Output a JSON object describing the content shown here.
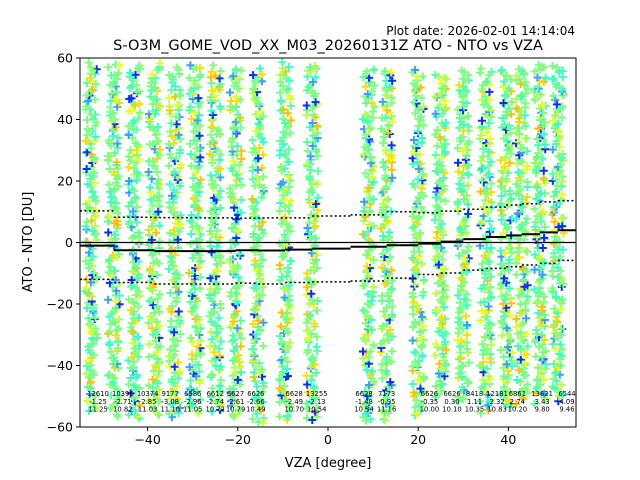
{
  "header": {
    "plot_date": "Plot date: 2026-02-01 14:14:04",
    "title": "S-O3M_GOME_VOD_XX_M03_20260131Z ATO - NTO vs VZA"
  },
  "chart_data": {
    "type": "scatter",
    "title": "S-O3M_GOME_VOD_XX_M03_20260131Z ATO - NTO vs VZA",
    "xlabel": "VZA [degree]",
    "ylabel": "ATO - NTO [DU]",
    "xlim": [
      -55,
      55
    ],
    "ylim": [
      -60,
      60
    ],
    "xticks": [
      -40,
      -20,
      0,
      20,
      40
    ],
    "yticks": [
      -60,
      -40,
      -20,
      0,
      20,
      40,
      60
    ],
    "xtick_labels": [
      "−40",
      "−20",
      "0",
      "20",
      "40"
    ],
    "ytick_labels": [
      "−60",
      "−40",
      "−20",
      "0",
      "20",
      "40",
      "60"
    ],
    "colors": {
      "scatter": [
        "#7fff7f",
        "#5cffa0",
        "#3cffc8",
        "#b8ff4a",
        "#e8ff24",
        "#ffdc00",
        "#ffc000",
        "#3c9cff",
        "#0030ff"
      ],
      "mean_line": "#000000",
      "zero_line": "#000000"
    },
    "scatter_columns": [
      {
        "x": -52.5,
        "ymin": -55,
        "ymax": 58
      },
      {
        "x": -47.5,
        "ymin": -56,
        "ymax": 58
      },
      {
        "x": -43.0,
        "ymin": -58,
        "ymax": 58
      },
      {
        "x": -38.5,
        "ymin": -56,
        "ymax": 58
      },
      {
        "x": -34.0,
        "ymin": -57,
        "ymax": 57
      },
      {
        "x": -29.5,
        "ymin": -56,
        "ymax": 58
      },
      {
        "x": -25.0,
        "ymin": -55,
        "ymax": 57
      },
      {
        "x": -20.5,
        "ymin": -57,
        "ymax": 57
      },
      {
        "x": -15.5,
        "ymin": -59,
        "ymax": 56
      },
      {
        "x": -9.5,
        "ymin": -58,
        "ymax": 58
      },
      {
        "x": -3.5,
        "ymin": -58,
        "ymax": 58
      },
      {
        "x": 9.0,
        "ymin": -58,
        "ymax": 57
      },
      {
        "x": 13.0,
        "ymin": -58,
        "ymax": 56
      },
      {
        "x": 20.0,
        "ymin": -56,
        "ymax": 56
      },
      {
        "x": 25.0,
        "ymin": -50,
        "ymax": 55
      },
      {
        "x": 30.0,
        "ymin": -52,
        "ymax": 56
      },
      {
        "x": 35.0,
        "ymin": -55,
        "ymax": 56
      },
      {
        "x": 39.5,
        "ymin": -54,
        "ymax": 56
      },
      {
        "x": 43.0,
        "ymin": -52,
        "ymax": 57
      },
      {
        "x": 47.0,
        "ymin": -52,
        "ymax": 58
      },
      {
        "x": 51.0,
        "ymin": -51,
        "ymax": 58
      }
    ],
    "mean_series": {
      "name": "mean",
      "x": [
        -55,
        -47.5,
        -38.5,
        -29.5,
        -20.5,
        -15.5,
        -9.5,
        -3.5,
        5,
        13,
        20,
        25,
        30,
        35,
        39.5,
        43,
        47,
        51,
        55
      ],
      "values": [
        -1.0,
        -2.5,
        -2.8,
        -2.8,
        -2.5,
        -2.6,
        -2.3,
        -2.0,
        -1.4,
        -0.9,
        -0.35,
        0.3,
        1.1,
        1.8,
        2.3,
        2.7,
        3.3,
        4.0,
        4.1
      ]
    },
    "upper_bound_series": {
      "name": "+1 sigma",
      "x": [
        -55,
        -47.5,
        -38.5,
        -29.5,
        -20.5,
        -15.5,
        -9.5,
        -3.5,
        5,
        13,
        20,
        25,
        30,
        35,
        39.5,
        43,
        47,
        51,
        55
      ],
      "values": [
        10.3,
        8.2,
        8.1,
        8.0,
        7.9,
        8.0,
        8.0,
        8.6,
        9.0,
        10.0,
        9.7,
        10.2,
        10.8,
        11.5,
        12.2,
        12.6,
        13.2,
        13.6,
        13.7
      ]
    },
    "lower_bound_series": {
      "name": "-1 sigma",
      "x": [
        -55,
        -47.5,
        -38.5,
        -29.5,
        -20.5,
        -15.5,
        -9.5,
        -3.5,
        5,
        13,
        20,
        25,
        30,
        35,
        39.5,
        43,
        47,
        51,
        55
      ],
      "values": [
        -12.0,
        -13.0,
        -13.5,
        -13.5,
        -13.2,
        -13.5,
        -13.0,
        -12.8,
        -12.5,
        -11.6,
        -10.4,
        -9.9,
        -9.0,
        -8.4,
        -7.9,
        -7.3,
        -6.8,
        -5.8,
        -5.6
      ]
    },
    "stats_annotations": [
      {
        "x": -51.0,
        "lines": [
          "12610",
          "-1.25",
          "11.25"
        ]
      },
      {
        "x": -45.5,
        "lines": [
          "10396",
          "-2.71",
          "10.82"
        ]
      },
      {
        "x": -40.0,
        "lines": [
          "10374",
          "-2.85",
          "11.03"
        ]
      },
      {
        "x": -35.0,
        "lines": [
          "9177",
          "-3.08",
          "11.10"
        ]
      },
      {
        "x": -30.0,
        "lines": [
          "6586",
          "-2.96",
          "11.05"
        ]
      },
      {
        "x": -25.0,
        "lines": [
          "6612",
          "-2.74",
          "10.72"
        ]
      },
      {
        "x": -20.5,
        "lines": [
          "6627",
          "-2.61",
          "10.79"
        ]
      },
      {
        "x": -16.0,
        "lines": [
          "6626",
          "-2.66",
          "10.49"
        ]
      },
      {
        "x": -7.5,
        "lines": [
          "6628",
          "-2.49",
          "10.70"
        ]
      },
      {
        "x": -2.5,
        "lines": [
          "13255",
          "-2.13",
          "10.54"
        ]
      },
      {
        "x": 8.0,
        "lines": [
          "6628",
          "-1.48",
          "10.34"
        ]
      },
      {
        "x": 13.0,
        "lines": [
          "7173",
          "-0.95",
          "11.16"
        ]
      },
      {
        "x": 22.5,
        "lines": [
          "6626",
          "-0.35",
          "10.00"
        ]
      },
      {
        "x": 27.5,
        "lines": [
          "6626",
          "0.30",
          "10.10"
        ]
      },
      {
        "x": 32.5,
        "lines": [
          "8418",
          "1.11",
          "10.35"
        ]
      },
      {
        "x": 37.5,
        "lines": [
          "12181",
          "2.32",
          "10.83"
        ]
      },
      {
        "x": 42.0,
        "lines": [
          "6861",
          "2.74",
          "10.20"
        ]
      },
      {
        "x": 47.5,
        "lines": [
          "13621",
          "3.43",
          "9.80"
        ]
      },
      {
        "x": 53.0,
        "lines": [
          "6544",
          "4.09",
          "9.46"
        ]
      }
    ]
  }
}
